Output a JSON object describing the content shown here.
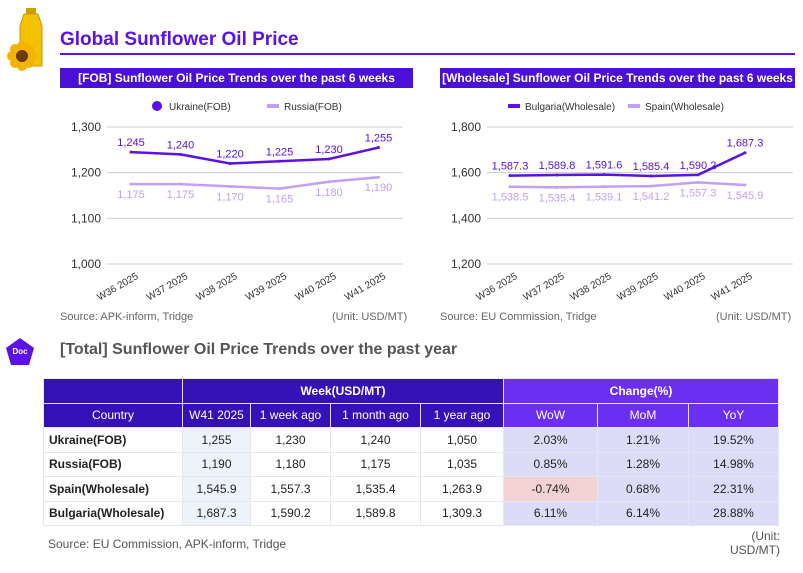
{
  "title": "Global Sunflower Oil Price",
  "chart_data": [
    {
      "type": "line",
      "title": "[FOB] Sunflower Oil Price Trends over the past 6 weeks",
      "categories": [
        "W36 2025",
        "W37 2025",
        "W38 2025",
        "W39 2025",
        "W40 2025",
        "W41 2025"
      ],
      "ylim": [
        1000,
        1300
      ],
      "yticks": [
        "1,000",
        "1,100",
        "1,200",
        "1,300"
      ],
      "grid": true,
      "legend": "top",
      "series": [
        {
          "name": "Ukraine(FOB)",
          "color": "#5a12e8",
          "values": [
            1245,
            1240,
            1220,
            1225,
            1230,
            1255
          ],
          "labels": [
            "1,245",
            "1,240",
            "1,220",
            "1,225",
            "1,230",
            "1,255"
          ]
        },
        {
          "name": "Russia(FOB)",
          "color": "#c2a0f5",
          "values": [
            1175,
            1175,
            1170,
            1165,
            1180,
            1190
          ],
          "labels": [
            "1,175",
            "1,175",
            "1,170",
            "1,165",
            "1,180",
            "1,190"
          ]
        }
      ],
      "source": "Source: APK-inform, Tridge",
      "unit": "(Unit: USD/MT)"
    },
    {
      "type": "line",
      "title": "[Wholesale] Sunflower Oil Price Trends over the past 6 weeks",
      "categories": [
        "W36 2025",
        "W37 2025",
        "W38 2025",
        "W39 2025",
        "W40 2025",
        "W41 2025"
      ],
      "ylim": [
        1200,
        1800
      ],
      "yticks": [
        "1,200",
        "1,400",
        "1,600",
        "1,800"
      ],
      "grid": true,
      "legend": "top",
      "series": [
        {
          "name": "Bulgaria(Wholesale)",
          "color": "#5a12e8",
          "values": [
            1587.3,
            1589.8,
            1591.6,
            1585.4,
            1590.2,
            1687.3
          ],
          "labels": [
            "1,587.3",
            "1,589.8",
            "1,591.6",
            "1,585.4",
            "1,590.2",
            "1,687.3"
          ]
        },
        {
          "name": "Spain(Wholesale)",
          "color": "#c2a0f5",
          "values": [
            1538.5,
            1535.4,
            1539.1,
            1541.2,
            1557.3,
            1545.9
          ],
          "labels": [
            "1,538.5",
            "1,535.4",
            "1,539.1",
            "1,541.2",
            "1,557.3",
            "1,545.9"
          ]
        }
      ],
      "source": "Source: EU Commission, Tridge",
      "unit": "(Unit: USD/MT)"
    }
  ],
  "doc_badge": "Doc",
  "table": {
    "title": "[Total] Sunflower Oil Price Trends over the past year",
    "group_week": "Week(USD/MT)",
    "group_change": "Change(%)",
    "headers": [
      "Country",
      "W41 2025",
      "1 week ago",
      "1 month ago",
      "1 year ago",
      "WoW",
      "MoM",
      "YoY"
    ],
    "rows": [
      [
        "Ukraine(FOB)",
        "1,255",
        "1,230",
        "1,240",
        "1,050",
        "2.03%",
        "1.21%",
        "19.52%"
      ],
      [
        "Russia(FOB)",
        "1,190",
        "1,180",
        "1,175",
        "1,035",
        "0.85%",
        "1.28%",
        "14.98%"
      ],
      [
        "Spain(Wholesale)",
        "1,545.9",
        "1,557.3",
        "1,535.4",
        "1,263.9",
        "-0.74%",
        "0.68%",
        "22.31%"
      ],
      [
        "Bulgaria(Wholesale)",
        "1,687.3",
        "1,590.2",
        "1,589.8",
        "1,309.3",
        "6.11%",
        "6.14%",
        "28.88%"
      ]
    ],
    "source": "Source: EU Commission, APK-inform, Tridge",
    "unit": "(Unit: USD/MT)"
  }
}
